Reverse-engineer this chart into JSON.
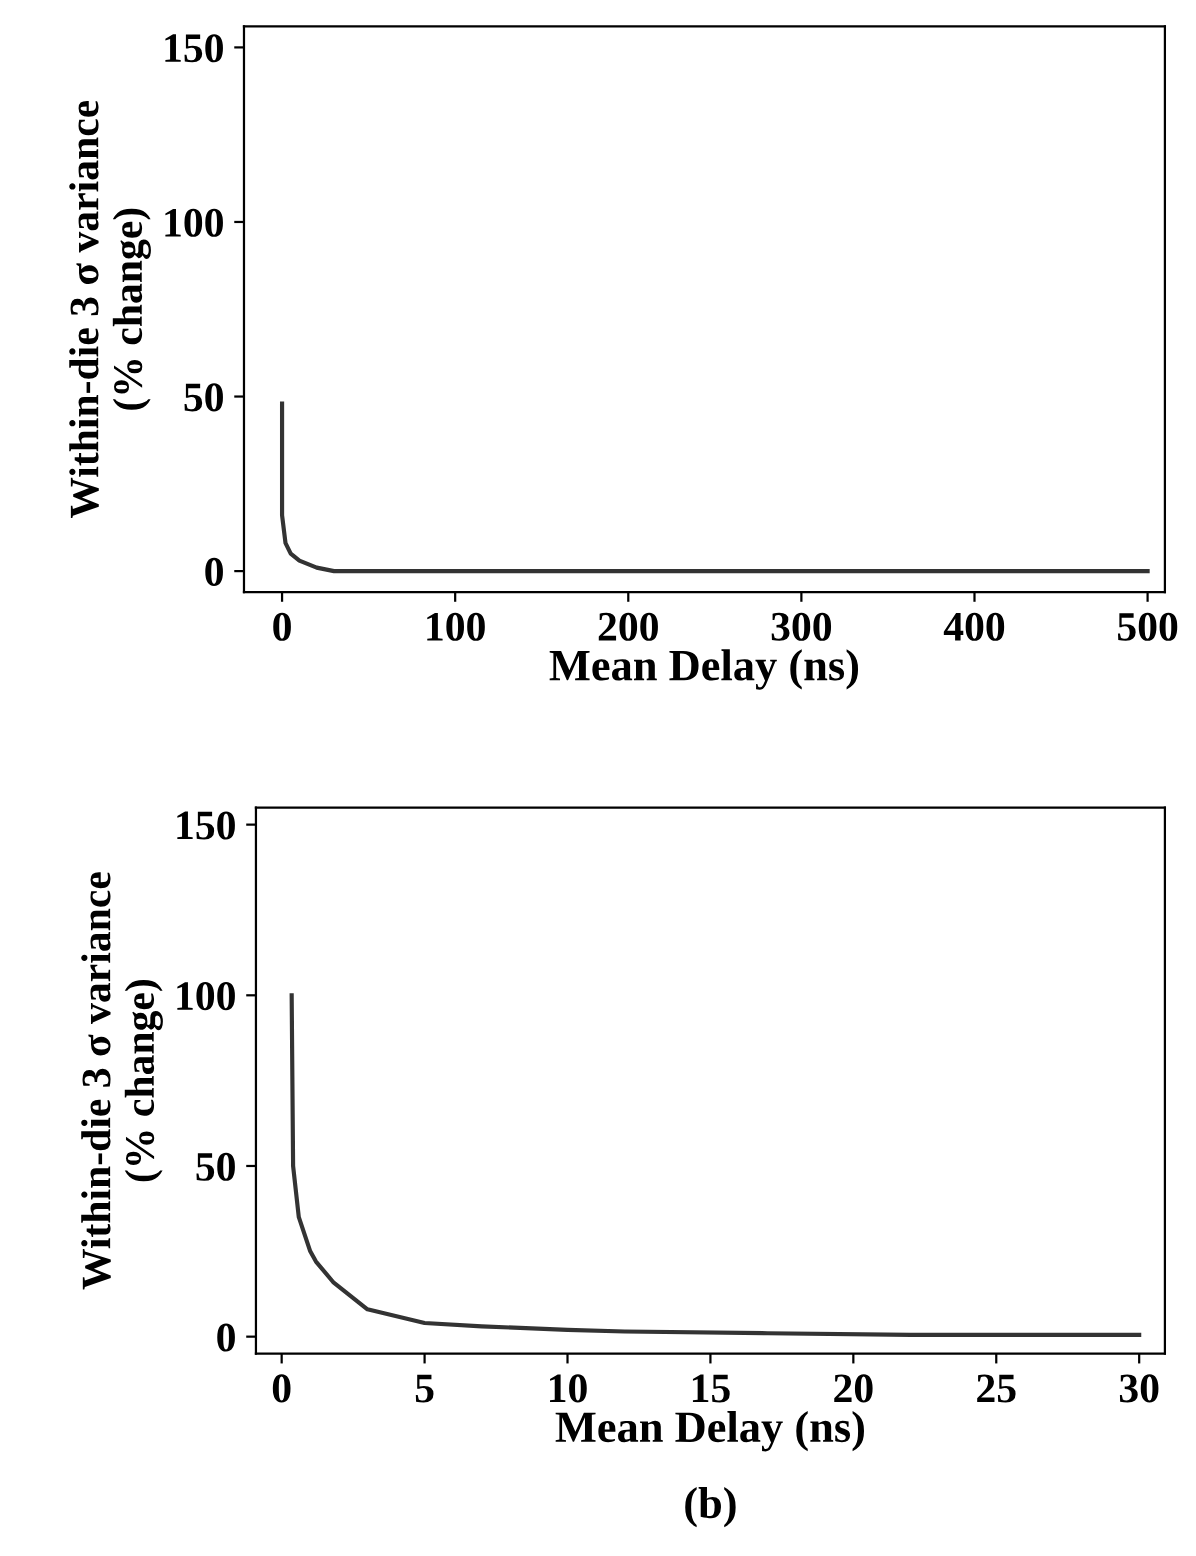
{
  "chart_data": [
    {
      "type": "line",
      "xlabel": "Mean Delay (ns)",
      "ylabel": "Within-die 3 σ variance\n(% change)",
      "series": [
        {
          "color": "#333333",
          "x": [
            0,
            0,
            2,
            5,
            10,
            15,
            20,
            30,
            100,
            200,
            300,
            400,
            500
          ],
          "values": [
            48,
            16,
            8,
            5,
            3,
            2,
            1,
            0,
            0,
            0,
            0,
            0,
            0
          ]
        }
      ],
      "xlim": [
        -22,
        510
      ],
      "xticks": [
        0,
        100,
        200,
        300,
        400,
        500
      ],
      "ylim": [
        -6,
        156
      ],
      "yticks": [
        0,
        50,
        100,
        150
      ],
      "grid": false,
      "legend": false,
      "marker": "none",
      "line_style": "solid"
    },
    {
      "type": "line",
      "xlabel": "Mean Delay (ns)",
      "ylabel": "Within-die 3 σ variance\n(% change)",
      "annotations": [
        "(b)"
      ],
      "series": [
        {
          "color": "#333333",
          "x": [
            0.35,
            0.4,
            0.6,
            1,
            1.2,
            1.8,
            3,
            5,
            7,
            10,
            12,
            17,
            22,
            30
          ],
          "values": [
            100,
            50,
            35,
            25,
            22,
            16,
            8,
            4,
            3,
            2,
            1.5,
            1,
            0.5,
            0.5
          ]
        }
      ],
      "xlim": [
        -0.9,
        30.9
      ],
      "xticks": [
        0,
        5,
        10,
        15,
        20,
        25,
        30
      ],
      "ylim": [
        -5,
        155
      ],
      "yticks": [
        0,
        50,
        100,
        150
      ],
      "grid": false,
      "legend": false,
      "marker": "none",
      "line_style": "solid"
    }
  ]
}
